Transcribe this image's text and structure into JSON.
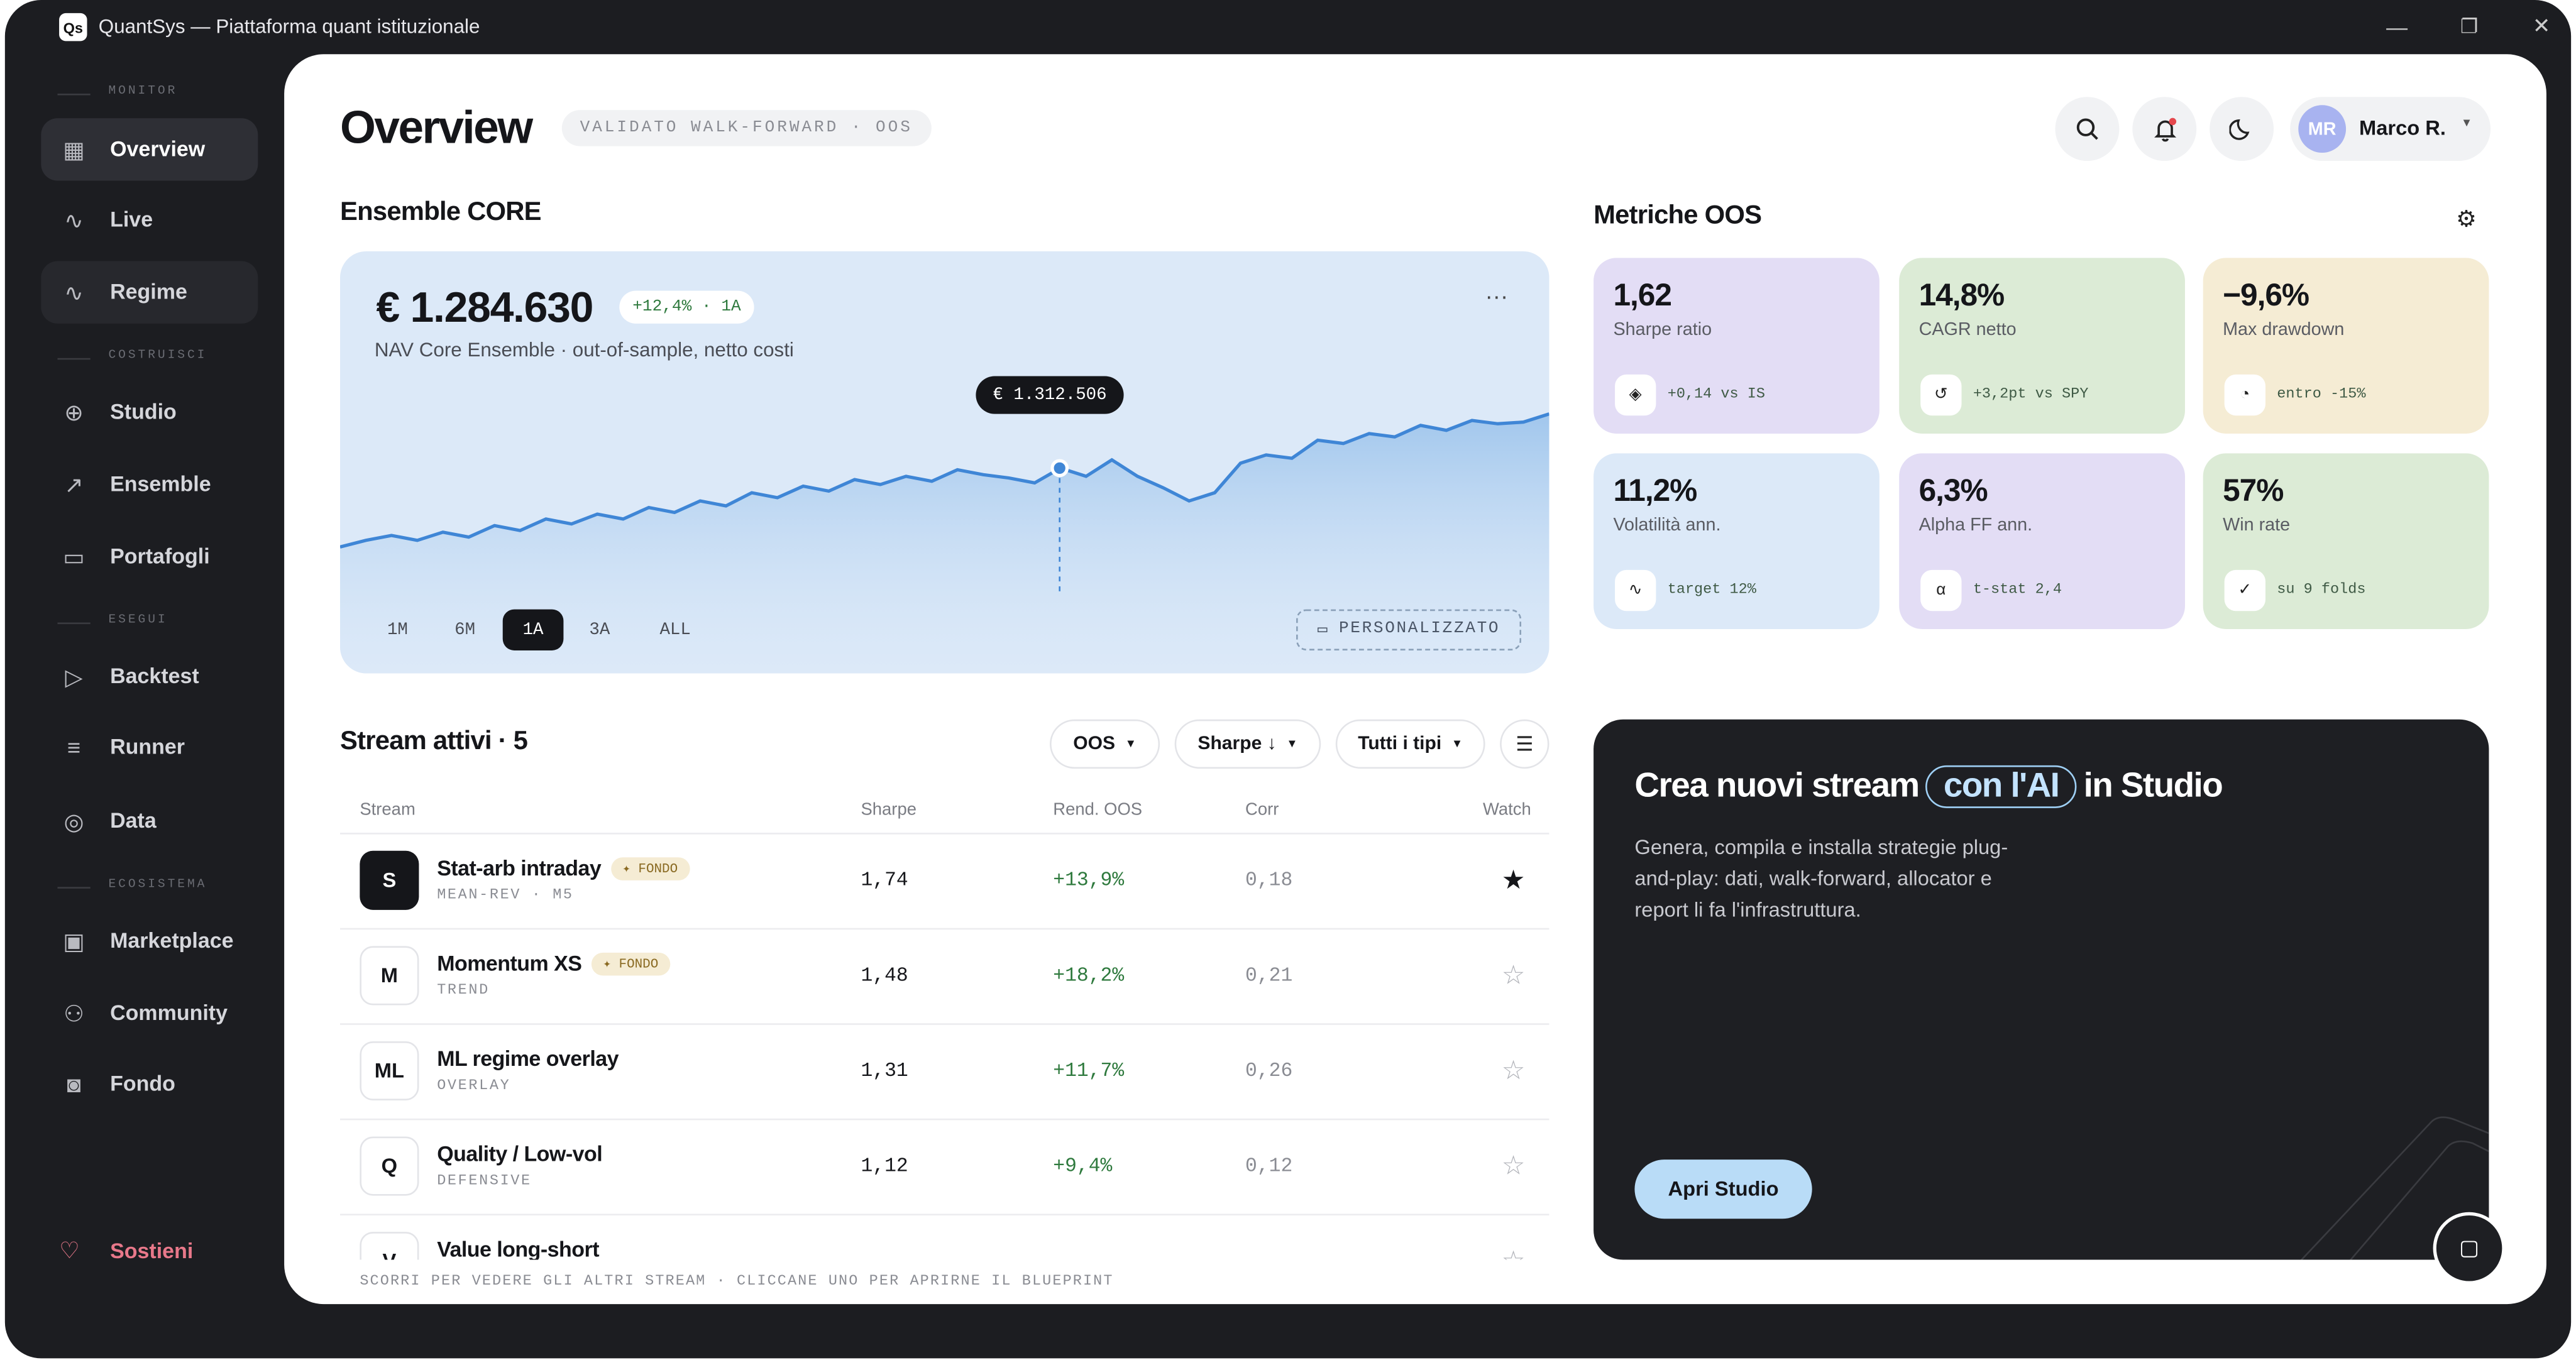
{
  "window": {
    "logo": "Qs",
    "title": "QuantSys — Piattaforma quant istituzionale"
  },
  "sidebar": {
    "sections": [
      {
        "label": "MONITOR",
        "items": [
          "Overview",
          "Live",
          "Regime"
        ]
      },
      {
        "label": "COSTRUISCI",
        "items": [
          "Studio",
          "Ensemble",
          "Portafogli"
        ]
      },
      {
        "label": "ESEGUI",
        "items": [
          "Backtest",
          "Runner",
          "Data"
        ]
      },
      {
        "label": "ECOSISTEMA",
        "items": [
          "Marketplace",
          "Community",
          "Fondo"
        ]
      }
    ],
    "support": "Sostieni"
  },
  "header": {
    "title": "Overview",
    "badge": "VALIDATO WALK-FORWARD · OOS",
    "user_initials": "MR",
    "user_name": "Marco R."
  },
  "ensemble": {
    "heading": "Ensemble CORE",
    "nav": "€ 1.284.630",
    "change": "+12,4% · 1A",
    "subtitle": "NAV Core Ensemble · out-of-sample, netto costi",
    "tooltip": "€ 1.312.506",
    "values": [
      1264,
      1268,
      1271,
      1268,
      1273,
      1270,
      1277,
      1274,
      1281,
      1278,
      1284,
      1281,
      1288,
      1285,
      1292,
      1289,
      1297,
      1294,
      1301,
      1298,
      1305,
      1302,
      1307,
      1304,
      1311,
      1308,
      1306,
      1303,
      1312,
      1307,
      1317,
      1307,
      1300,
      1292,
      1297,
      1315,
      1320,
      1318,
      1329,
      1327,
      1333,
      1331,
      1338,
      1335,
      1341,
      1339,
      1340,
      1345
    ],
    "ranges": [
      "1M",
      "6M",
      "1A",
      "3A",
      "ALL"
    ],
    "custom": "PERSONALIZZATO"
  },
  "metrics": {
    "heading": "Metriche OOS",
    "cards": [
      {
        "value": "1,62",
        "label": "Sharpe ratio",
        "note": "+0,14 vs IS"
      },
      {
        "value": "14,8%",
        "label": "CAGR netto",
        "note": "+3,2pt vs SPY"
      },
      {
        "value": "−9,6%",
        "label": "Max drawdown",
        "note": "entro -15%"
      },
      {
        "value": "11,2%",
        "label": "Volatilità ann.",
        "note": "target 12%"
      },
      {
        "value": "6,3%",
        "label": "Alpha FF ann.",
        "note": "t-stat 2,4"
      },
      {
        "value": "57%",
        "label": "Win rate",
        "note": "su 9 folds"
      }
    ]
  },
  "streams": {
    "heading": "Stream attivi · 5",
    "filters": [
      "OOS",
      "Sharpe ↓",
      "Tutti i tipi"
    ],
    "columns": [
      "Stream",
      "Sharpe",
      "Rend. OOS",
      "Corr",
      "Watch"
    ],
    "rows": [
      {
        "initials": "S",
        "name": "Stat-arb intraday",
        "tag": "✦ FONDO",
        "sub": "MEAN-REV · M5",
        "sharpe": "1,74",
        "ret": "+13,9%",
        "corr": "0,18"
      },
      {
        "initials": "M",
        "name": "Momentum XS",
        "tag": "✦ FONDO",
        "sub": "TREND",
        "sharpe": "1,48",
        "ret": "+18,2%",
        "corr": "0,21"
      },
      {
        "initials": "ML",
        "name": "ML regime overlay",
        "sub": "OVERLAY",
        "sharpe": "1,31",
        "ret": "+11,7%",
        "corr": "0,26"
      },
      {
        "initials": "Q",
        "name": "Quality / Low-vol",
        "sub": "DEFENSIVE",
        "sharpe": "1,12",
        "ret": "+9,4%",
        "corr": "0,12"
      },
      {
        "initials": "V",
        "name": "Value long-short"
      }
    ],
    "footer": "SCORRI PER VEDERE GLI ALTRI STREAM · CLICCANE UNO PER APRIRNE IL BLUEPRINT"
  },
  "promo": {
    "title_start": "Crea nuovi stream",
    "highlight": "con l'AI",
    "title_end": "in Studio",
    "text": "Genera, compila e installa strategie plug-and-play: dati, walk-forward, allocator e report li fa l'infrastruttura.",
    "button": "Apri Studio"
  }
}
